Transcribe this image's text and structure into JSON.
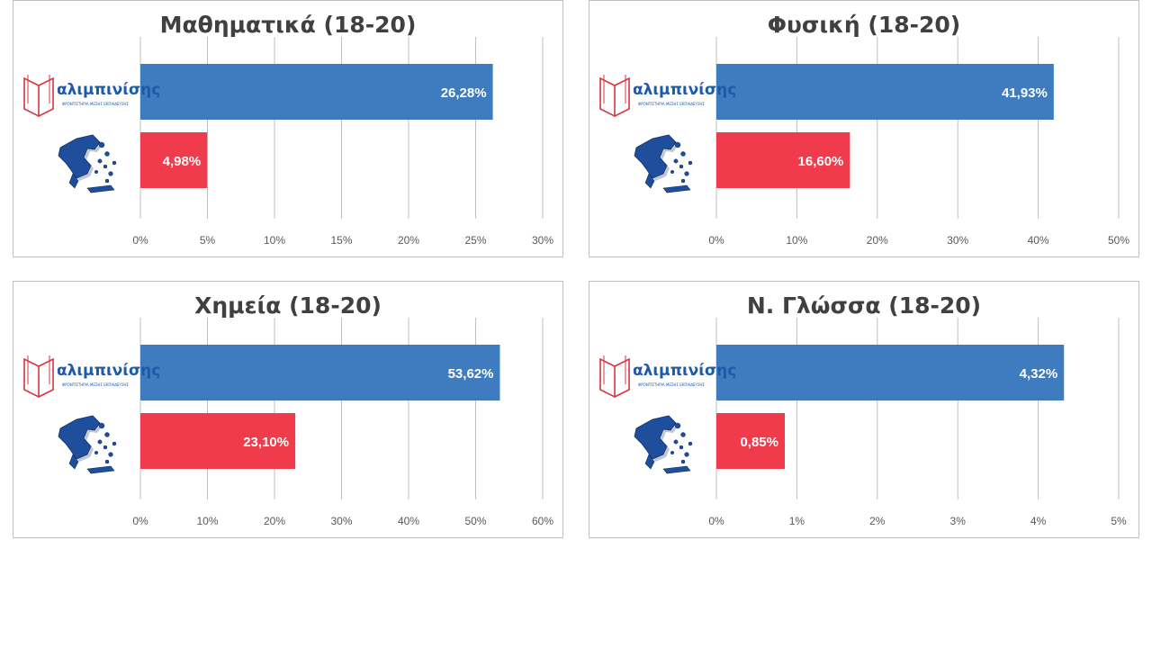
{
  "colors": {
    "brand_bar": "#3f7cbf",
    "national_bar": "#ef3b4b",
    "grid": "#bfbfbf",
    "axis_text": "#595959",
    "logo_blue": "#1f5aa6",
    "logo_red": "#d9343f"
  },
  "logo": {
    "text": "αλιμπινίσης",
    "subtitle": "ΦΡΟΝΤΙΣΤΗΡΙΑ ΜΕΣΗΣ ΕΚΠΑΙΔΕΥΣΗΣ"
  },
  "icons": {
    "brand_row": "book-logo-icon",
    "national_row": "greece-map-icon"
  },
  "chart_data": [
    {
      "type": "bar",
      "orientation": "horizontal",
      "title": "Μαθηματικά (18-20)",
      "categories": [
        "αλιμπινίσης",
        "Ελλάδα"
      ],
      "values": [
        26.28,
        4.98
      ],
      "data_labels": [
        "26,28%",
        "4,98%"
      ],
      "xlim": [
        0,
        30
      ],
      "ticks": [
        0,
        5,
        10,
        15,
        20,
        25,
        30
      ],
      "tick_labels": [
        "0%",
        "5%",
        "10%",
        "15%",
        "20%",
        "25%",
        "30%"
      ],
      "grid": true
    },
    {
      "type": "bar",
      "orientation": "horizontal",
      "title": "Φυσική (18-20)",
      "categories": [
        "αλιμπινίσης",
        "Ελλάδα"
      ],
      "values": [
        41.93,
        16.6
      ],
      "data_labels": [
        "41,93%",
        "16,60%"
      ],
      "xlim": [
        0,
        50
      ],
      "ticks": [
        0,
        10,
        20,
        30,
        40,
        50
      ],
      "tick_labels": [
        "0%",
        "10%",
        "20%",
        "30%",
        "40%",
        "50%"
      ],
      "grid": true
    },
    {
      "type": "bar",
      "orientation": "horizontal",
      "title": "Χημεία (18-20)",
      "categories": [
        "αλιμπινίσης",
        "Ελλάδα"
      ],
      "values": [
        53.62,
        23.1
      ],
      "data_labels": [
        "53,62%",
        "23,10%"
      ],
      "xlim": [
        0,
        60
      ],
      "ticks": [
        0,
        10,
        20,
        30,
        40,
        50,
        60
      ],
      "tick_labels": [
        "0%",
        "10%",
        "20%",
        "30%",
        "40%",
        "50%",
        "60%"
      ],
      "grid": true
    },
    {
      "type": "bar",
      "orientation": "horizontal",
      "title": "Ν. Γλώσσα (18-20)",
      "categories": [
        "αλιμπινίσης",
        "Ελλάδα"
      ],
      "values": [
        4.32,
        0.85
      ],
      "data_labels": [
        "4,32%",
        "0,85%"
      ],
      "xlim": [
        0,
        5
      ],
      "ticks": [
        0,
        1,
        2,
        3,
        4,
        5
      ],
      "tick_labels": [
        "0%",
        "1%",
        "2%",
        "3%",
        "4%",
        "5%"
      ],
      "grid": true
    }
  ]
}
